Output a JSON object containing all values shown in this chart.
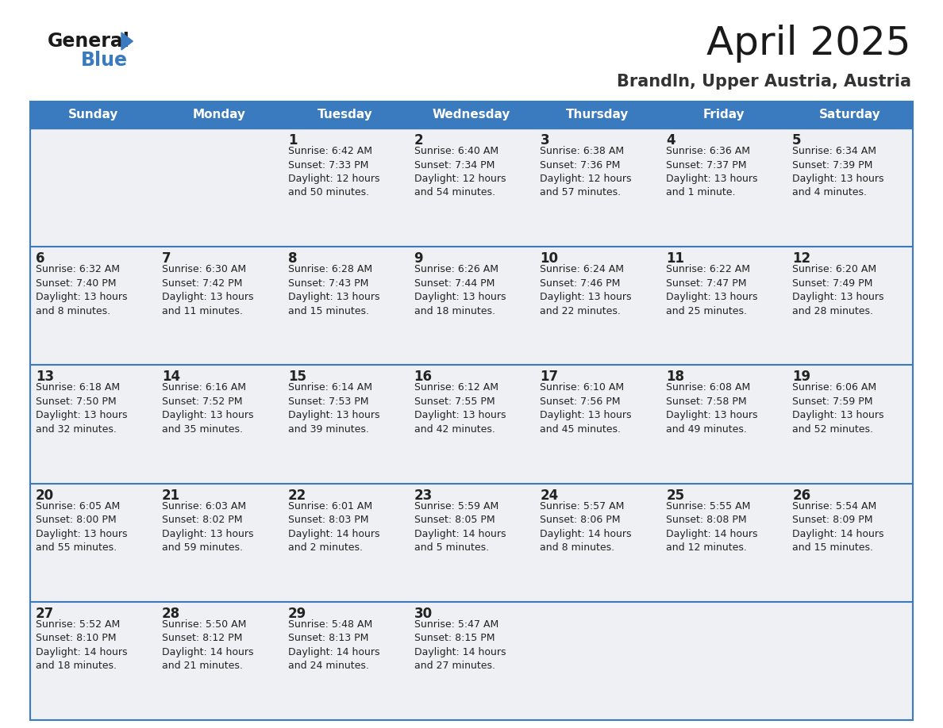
{
  "title": "April 2025",
  "subtitle": "Brandln, Upper Austria, Austria",
  "header_color": "#3a7abf",
  "header_text_color": "#ffffff",
  "cell_bg_color": "#eef0f3",
  "cell_bg_empty": "#ffffff",
  "border_color": "#3a7abf",
  "row_sep_color": "#3a7abf",
  "text_color": "#222222",
  "days_of_week": [
    "Sunday",
    "Monday",
    "Tuesday",
    "Wednesday",
    "Thursday",
    "Friday",
    "Saturday"
  ],
  "calendar_data": [
    [
      {
        "day": "",
        "info": ""
      },
      {
        "day": "",
        "info": ""
      },
      {
        "day": "1",
        "info": "Sunrise: 6:42 AM\nSunset: 7:33 PM\nDaylight: 12 hours\nand 50 minutes."
      },
      {
        "day": "2",
        "info": "Sunrise: 6:40 AM\nSunset: 7:34 PM\nDaylight: 12 hours\nand 54 minutes."
      },
      {
        "day": "3",
        "info": "Sunrise: 6:38 AM\nSunset: 7:36 PM\nDaylight: 12 hours\nand 57 minutes."
      },
      {
        "day": "4",
        "info": "Sunrise: 6:36 AM\nSunset: 7:37 PM\nDaylight: 13 hours\nand 1 minute."
      },
      {
        "day": "5",
        "info": "Sunrise: 6:34 AM\nSunset: 7:39 PM\nDaylight: 13 hours\nand 4 minutes."
      }
    ],
    [
      {
        "day": "6",
        "info": "Sunrise: 6:32 AM\nSunset: 7:40 PM\nDaylight: 13 hours\nand 8 minutes."
      },
      {
        "day": "7",
        "info": "Sunrise: 6:30 AM\nSunset: 7:42 PM\nDaylight: 13 hours\nand 11 minutes."
      },
      {
        "day": "8",
        "info": "Sunrise: 6:28 AM\nSunset: 7:43 PM\nDaylight: 13 hours\nand 15 minutes."
      },
      {
        "day": "9",
        "info": "Sunrise: 6:26 AM\nSunset: 7:44 PM\nDaylight: 13 hours\nand 18 minutes."
      },
      {
        "day": "10",
        "info": "Sunrise: 6:24 AM\nSunset: 7:46 PM\nDaylight: 13 hours\nand 22 minutes."
      },
      {
        "day": "11",
        "info": "Sunrise: 6:22 AM\nSunset: 7:47 PM\nDaylight: 13 hours\nand 25 minutes."
      },
      {
        "day": "12",
        "info": "Sunrise: 6:20 AM\nSunset: 7:49 PM\nDaylight: 13 hours\nand 28 minutes."
      }
    ],
    [
      {
        "day": "13",
        "info": "Sunrise: 6:18 AM\nSunset: 7:50 PM\nDaylight: 13 hours\nand 32 minutes."
      },
      {
        "day": "14",
        "info": "Sunrise: 6:16 AM\nSunset: 7:52 PM\nDaylight: 13 hours\nand 35 minutes."
      },
      {
        "day": "15",
        "info": "Sunrise: 6:14 AM\nSunset: 7:53 PM\nDaylight: 13 hours\nand 39 minutes."
      },
      {
        "day": "16",
        "info": "Sunrise: 6:12 AM\nSunset: 7:55 PM\nDaylight: 13 hours\nand 42 minutes."
      },
      {
        "day": "17",
        "info": "Sunrise: 6:10 AM\nSunset: 7:56 PM\nDaylight: 13 hours\nand 45 minutes."
      },
      {
        "day": "18",
        "info": "Sunrise: 6:08 AM\nSunset: 7:58 PM\nDaylight: 13 hours\nand 49 minutes."
      },
      {
        "day": "19",
        "info": "Sunrise: 6:06 AM\nSunset: 7:59 PM\nDaylight: 13 hours\nand 52 minutes."
      }
    ],
    [
      {
        "day": "20",
        "info": "Sunrise: 6:05 AM\nSunset: 8:00 PM\nDaylight: 13 hours\nand 55 minutes."
      },
      {
        "day": "21",
        "info": "Sunrise: 6:03 AM\nSunset: 8:02 PM\nDaylight: 13 hours\nand 59 minutes."
      },
      {
        "day": "22",
        "info": "Sunrise: 6:01 AM\nSunset: 8:03 PM\nDaylight: 14 hours\nand 2 minutes."
      },
      {
        "day": "23",
        "info": "Sunrise: 5:59 AM\nSunset: 8:05 PM\nDaylight: 14 hours\nand 5 minutes."
      },
      {
        "day": "24",
        "info": "Sunrise: 5:57 AM\nSunset: 8:06 PM\nDaylight: 14 hours\nand 8 minutes."
      },
      {
        "day": "25",
        "info": "Sunrise: 5:55 AM\nSunset: 8:08 PM\nDaylight: 14 hours\nand 12 minutes."
      },
      {
        "day": "26",
        "info": "Sunrise: 5:54 AM\nSunset: 8:09 PM\nDaylight: 14 hours\nand 15 minutes."
      }
    ],
    [
      {
        "day": "27",
        "info": "Sunrise: 5:52 AM\nSunset: 8:10 PM\nDaylight: 14 hours\nand 18 minutes."
      },
      {
        "day": "28",
        "info": "Sunrise: 5:50 AM\nSunset: 8:12 PM\nDaylight: 14 hours\nand 21 minutes."
      },
      {
        "day": "29",
        "info": "Sunrise: 5:48 AM\nSunset: 8:13 PM\nDaylight: 14 hours\nand 24 minutes."
      },
      {
        "day": "30",
        "info": "Sunrise: 5:47 AM\nSunset: 8:15 PM\nDaylight: 14 hours\nand 27 minutes."
      },
      {
        "day": "",
        "info": ""
      },
      {
        "day": "",
        "info": ""
      },
      {
        "day": "",
        "info": ""
      }
    ]
  ],
  "title_fontsize": 36,
  "subtitle_fontsize": 15,
  "header_fontsize": 11,
  "day_num_fontsize": 12,
  "info_fontsize": 9,
  "logo_fontsize_general": 17,
  "logo_fontsize_blue": 17
}
